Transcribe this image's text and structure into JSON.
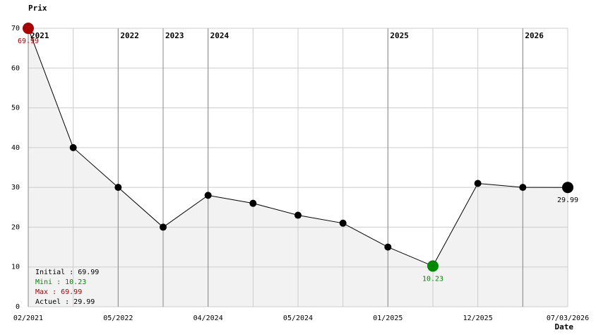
{
  "chart_data": {
    "type": "line",
    "y_label": "Prix",
    "x_label": "Date",
    "categories": [
      "02/2021",
      null,
      "05/2022",
      null,
      "04/2024",
      null,
      "05/2024",
      null,
      "01/2025",
      null,
      "12/2025",
      null,
      "07/03/2026"
    ],
    "year_markers": [
      "2021",
      null,
      "2022",
      "2023",
      "2024",
      null,
      null,
      null,
      "2025",
      null,
      null,
      "2026",
      null
    ],
    "values": [
      69.99,
      40,
      30,
      20,
      28,
      26,
      23,
      21,
      15,
      10.23,
      31,
      30,
      29.99
    ],
    "color": "#000000",
    "area_color": "#f2f2f2",
    "max_color": "#aa0000",
    "min_color": "#008800",
    "ylim": [
      0,
      70
    ],
    "yticks": [
      0,
      10,
      20,
      30,
      40,
      50,
      60,
      70
    ],
    "grid": true,
    "summary": [
      {
        "label": "Initial : 69.99",
        "color": "#000000"
      },
      {
        "label": "Mini : 10.23",
        "color": "#008800"
      },
      {
        "label": "Max : 69.99",
        "color": "#aa0000"
      },
      {
        "label": "Actuel : 29.99",
        "color": "#000000"
      }
    ]
  }
}
